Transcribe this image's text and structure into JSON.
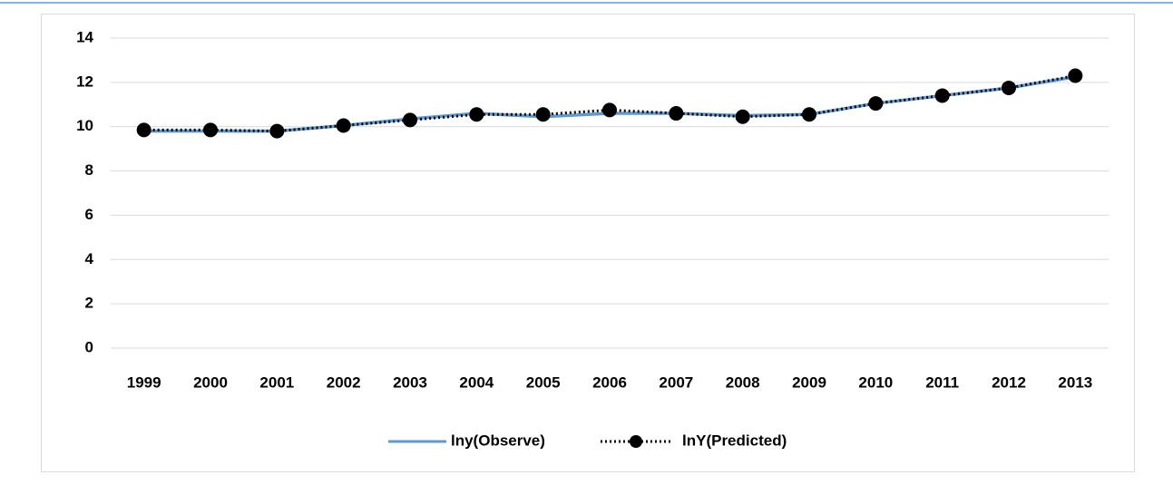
{
  "chart_data": {
    "type": "line",
    "categories": [
      "1999",
      "2000",
      "2001",
      "2002",
      "2003",
      "2004",
      "2005",
      "2006",
      "2007",
      "2008",
      "2009",
      "2010",
      "2011",
      "2012",
      "2013"
    ],
    "series": [
      {
        "name": "lny(Observe)",
        "color": "#5b9bd5",
        "values": [
          9.8,
          9.8,
          9.8,
          10.05,
          10.35,
          10.6,
          10.45,
          10.6,
          10.6,
          10.5,
          10.55,
          11.05,
          11.4,
          11.75,
          12.25
        ]
      },
      {
        "name": "lnY(Predicted)",
        "color": "#000000",
        "values": [
          9.85,
          9.85,
          9.8,
          10.05,
          10.3,
          10.55,
          10.55,
          10.75,
          10.6,
          10.45,
          10.55,
          11.05,
          11.4,
          11.75,
          12.3
        ]
      }
    ],
    "ylim": [
      0,
      14
    ],
    "yticks": [
      0,
      2,
      4,
      6,
      8,
      10,
      12,
      14
    ],
    "grid": true,
    "legend": "bottom"
  }
}
